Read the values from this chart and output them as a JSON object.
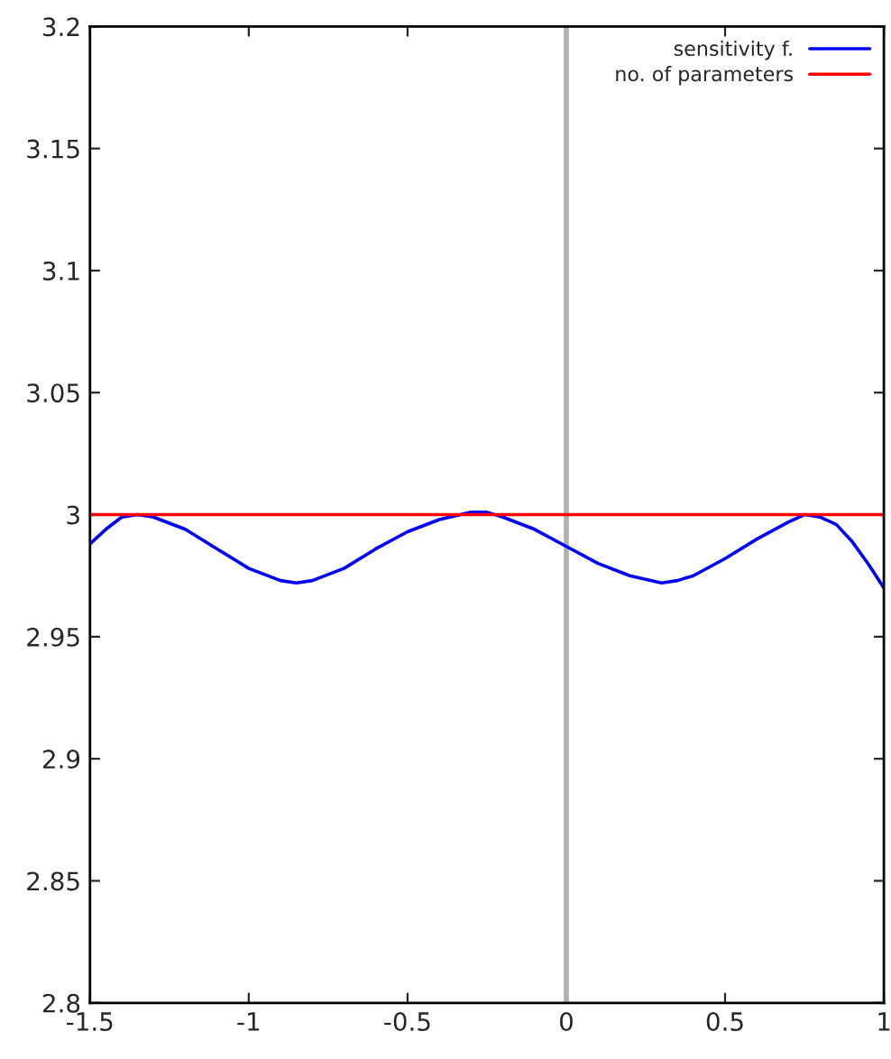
{
  "chart_data": {
    "type": "line",
    "x": [
      -1.5,
      -1.45,
      -1.4,
      -1.35,
      -1.3,
      -1.2,
      -1.1,
      -1.0,
      -0.9,
      -0.85,
      -0.8,
      -0.7,
      -0.6,
      -0.5,
      -0.4,
      -0.3,
      -0.25,
      -0.2,
      -0.1,
      0,
      0.1,
      0.2,
      0.3,
      0.35,
      0.4,
      0.5,
      0.6,
      0.7,
      0.75,
      0.8,
      0.85,
      0.9,
      0.95,
      1.0
    ],
    "series": [
      {
        "name": "sensitivity f.",
        "color": "#0000ff",
        "values": [
          2.988,
          2.994,
          2.999,
          3.0,
          2.999,
          2.994,
          2.986,
          2.978,
          2.973,
          2.972,
          2.973,
          2.978,
          2.986,
          2.993,
          2.998,
          3.001,
          3.001,
          2.999,
          2.994,
          2.987,
          2.98,
          2.975,
          2.972,
          2.973,
          2.975,
          2.982,
          2.99,
          2.997,
          3.0,
          2.999,
          2.996,
          2.989,
          2.98,
          2.97
        ]
      },
      {
        "name": "no. of parameters",
        "color": "#ff0000",
        "x": [
          -1.5,
          1.0
        ],
        "values": [
          3.0,
          3.0
        ]
      }
    ],
    "xlim": [
      -1.5,
      1
    ],
    "ylim": [
      2.8,
      3.2
    ],
    "xticks": [
      -1.5,
      -1,
      -0.5,
      0,
      0.5,
      1
    ],
    "yticks": [
      2.8,
      2.85,
      2.9,
      2.95,
      3,
      3.05,
      3.1,
      3.15,
      3.2
    ],
    "ref_lines": [
      {
        "axis": "x",
        "value": 0,
        "color": "#b0b0b0"
      }
    ],
    "grid": false,
    "legend": "top right",
    "marker": "none",
    "line_style": "solid"
  }
}
